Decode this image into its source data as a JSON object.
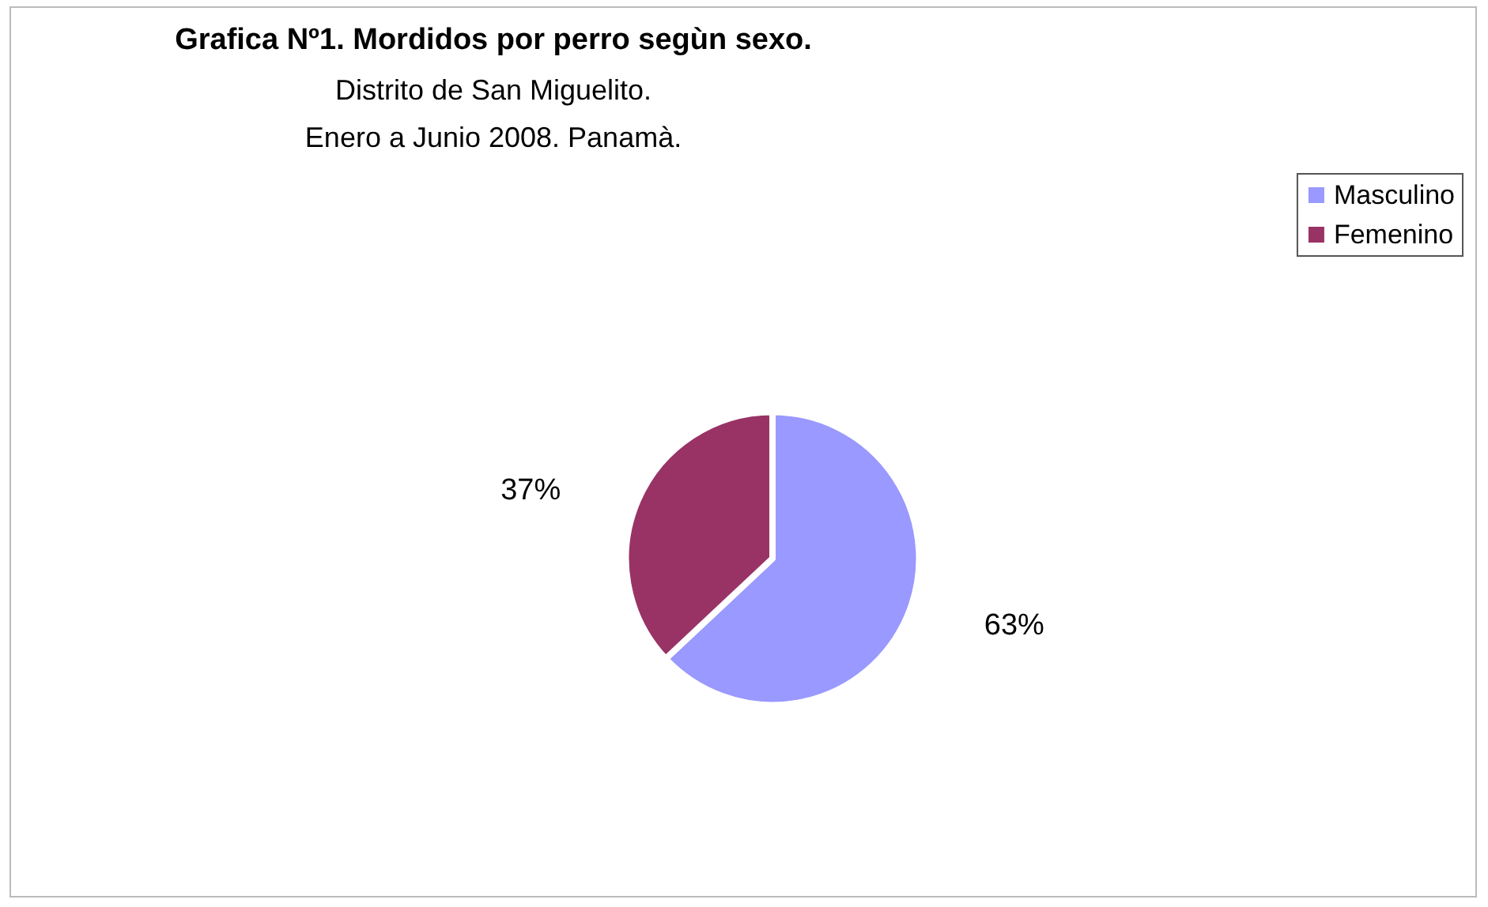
{
  "chart_data": {
    "type": "pie",
    "title": "Grafica Nº1. Mordidos por perro segùn sexo.",
    "subtitle": "Distrito de San Miguelito.\nEnero a Junio 2008. Panamà.",
    "categories": [
      "Masculino",
      "Femenino"
    ],
    "values": [
      63,
      37
    ],
    "value_labels": [
      "63%",
      "37%"
    ],
    "colors": [
      "#9999ff",
      "#993366"
    ],
    "legend": "top right"
  }
}
